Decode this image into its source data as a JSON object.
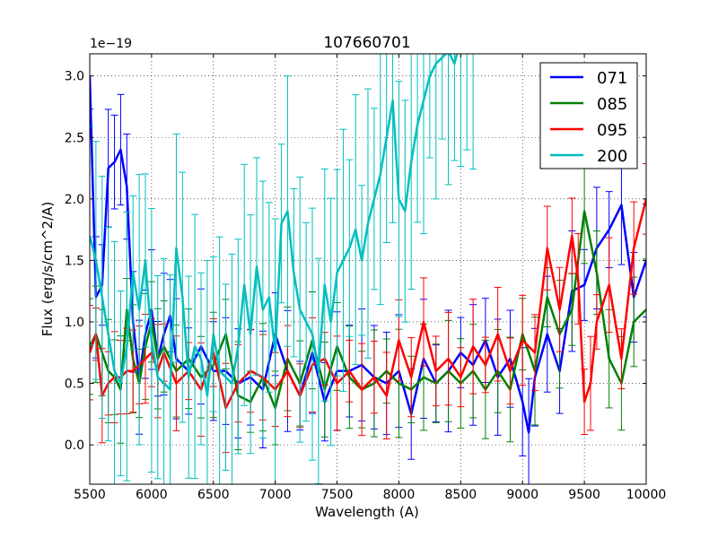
{
  "chart_data": {
    "type": "line",
    "title": "107660701",
    "xlabel": "Wavelength (A)",
    "ylabel": "Flux (erg/s/cm^2/A)",
    "offset_label": "1e−19",
    "xlim": [
      5500,
      10000
    ],
    "ylim": [
      -0.32,
      3.18
    ],
    "xticks": [
      5500,
      6000,
      6500,
      7000,
      7500,
      8000,
      8500,
      9000,
      9500,
      10000
    ],
    "xtick_labels": [
      "5500",
      "6000",
      "6500",
      "7000",
      "7500",
      "8000",
      "8500",
      "9000",
      "9500",
      "10000"
    ],
    "yticks": [
      0.0,
      0.5,
      1.0,
      1.5,
      2.0,
      2.5,
      3.0
    ],
    "ytick_labels": [
      "0.0",
      "0.5",
      "1.0",
      "1.5",
      "2.0",
      "2.5",
      "3.0"
    ],
    "grid": true,
    "legend_position": "top-right",
    "series": [
      {
        "name": "071",
        "color": "#0000ff",
        "x": [
          5500,
          5550,
          5600,
          5650,
          5700,
          5750,
          5800,
          5850,
          5900,
          5950,
          6000,
          6050,
          6100,
          6150,
          6200,
          6300,
          6400,
          6500,
          6600,
          6700,
          6800,
          6900,
          7000,
          7100,
          7200,
          7300,
          7400,
          7500,
          7600,
          7700,
          7800,
          7900,
          8000,
          8100,
          8200,
          8300,
          8400,
          8500,
          8600,
          8700,
          8800,
          8900,
          9000,
          9050,
          9100,
          9200,
          9300,
          9400,
          9500,
          9600,
          9700,
          9800,
          9900,
          10000
        ],
        "y": [
          3.0,
          1.2,
          1.3,
          2.25,
          2.3,
          2.4,
          2.1,
          1.0,
          0.55,
          0.9,
          1.1,
          0.7,
          0.9,
          1.05,
          0.7,
          0.6,
          0.8,
          0.6,
          0.6,
          0.5,
          0.55,
          0.45,
          0.9,
          0.6,
          0.4,
          0.75,
          0.35,
          0.6,
          0.6,
          0.65,
          0.55,
          0.5,
          0.6,
          0.25,
          0.7,
          0.5,
          0.6,
          0.75,
          0.65,
          0.85,
          0.55,
          0.7,
          0.35,
          0.1,
          0.55,
          0.9,
          0.6,
          1.25,
          1.3,
          1.6,
          1.75,
          1.95,
          1.2,
          1.5
        ],
        "err": 0.45
      },
      {
        "name": "085",
        "color": "#008000",
        "x": [
          5500,
          5550,
          5600,
          5650,
          5700,
          5750,
          5800,
          5850,
          5900,
          5950,
          6000,
          6050,
          6100,
          6200,
          6300,
          6400,
          6500,
          6600,
          6700,
          6800,
          6900,
          7000,
          7100,
          7200,
          7300,
          7400,
          7500,
          7600,
          7700,
          7800,
          7900,
          8000,
          8100,
          8200,
          8300,
          8400,
          8500,
          8600,
          8700,
          8800,
          8900,
          9000,
          9100,
          9200,
          9300,
          9400,
          9500,
          9600,
          9700,
          9800,
          9900,
          10000
        ],
        "y": [
          0.8,
          0.9,
          0.75,
          0.6,
          0.55,
          0.45,
          1.1,
          0.7,
          0.5,
          0.8,
          1.0,
          0.7,
          0.8,
          0.6,
          0.7,
          0.55,
          0.65,
          0.9,
          0.4,
          0.35,
          0.55,
          0.3,
          0.7,
          0.5,
          0.85,
          0.45,
          0.8,
          0.55,
          0.45,
          0.5,
          0.6,
          0.5,
          0.45,
          0.55,
          0.5,
          0.6,
          0.5,
          0.6,
          0.45,
          0.6,
          0.45,
          0.9,
          0.6,
          1.2,
          0.9,
          1.1,
          1.9,
          1.4,
          0.7,
          0.5,
          1.0,
          1.1
        ],
        "err": 0.4
      },
      {
        "name": "095",
        "color": "#ff0000",
        "x": [
          5500,
          5550,
          5600,
          5650,
          5700,
          5750,
          5800,
          5850,
          5900,
          5950,
          6000,
          6050,
          6100,
          6200,
          6300,
          6400,
          6500,
          6600,
          6700,
          6800,
          6900,
          7000,
          7100,
          7200,
          7300,
          7400,
          7500,
          7600,
          7700,
          7800,
          7900,
          8000,
          8100,
          8200,
          8300,
          8400,
          8500,
          8600,
          8700,
          8800,
          8900,
          9000,
          9100,
          9200,
          9300,
          9400,
          9450,
          9500,
          9550,
          9600,
          9700,
          9800,
          9900,
          10000
        ],
        "y": [
          0.75,
          0.9,
          0.4,
          0.5,
          0.55,
          0.55,
          0.6,
          0.6,
          0.65,
          0.7,
          0.75,
          0.6,
          0.75,
          0.5,
          0.6,
          0.45,
          0.75,
          0.3,
          0.5,
          0.6,
          0.55,
          0.45,
          0.6,
          0.4,
          0.65,
          0.7,
          0.5,
          0.6,
          0.45,
          0.55,
          0.4,
          0.85,
          0.55,
          1.0,
          0.6,
          0.7,
          0.55,
          0.8,
          0.65,
          0.9,
          0.6,
          0.85,
          0.75,
          1.6,
          1.1,
          1.7,
          1.35,
          0.35,
          0.5,
          1.0,
          1.3,
          0.7,
          1.6,
          2.0
        ],
        "err": 0.35
      },
      {
        "name": "200",
        "color": "#00bfbf",
        "x": [
          5500,
          5550,
          5600,
          5650,
          5700,
          5750,
          5800,
          5850,
          5900,
          5950,
          6000,
          6050,
          6100,
          6150,
          6200,
          6250,
          6300,
          6350,
          6400,
          6450,
          6500,
          6550,
          6600,
          6650,
          6700,
          6750,
          6800,
          6850,
          6900,
          6950,
          7000,
          7050,
          7100,
          7150,
          7200,
          7250,
          7300,
          7350,
          7400,
          7450,
          7500,
          7550,
          7600,
          7650,
          7700,
          7750,
          7800,
          7850,
          7900,
          7950,
          8000,
          8050,
          8100,
          8150,
          8200,
          8250,
          8300,
          8350,
          8400,
          8450,
          8500,
          8550,
          8600
        ],
        "y": [
          1.7,
          1.5,
          1.2,
          0.9,
          0.6,
          0.5,
          0.8,
          1.4,
          1.1,
          1.5,
          0.85,
          0.55,
          0.5,
          0.45,
          1.6,
          1.2,
          0.55,
          0.8,
          0.7,
          0.4,
          0.9,
          0.6,
          0.55,
          0.5,
          0.8,
          1.3,
          0.9,
          1.45,
          1.1,
          1.2,
          0.75,
          1.8,
          1.9,
          1.4,
          1.1,
          1.0,
          0.9,
          0.6,
          1.3,
          1.0,
          1.4,
          1.5,
          1.6,
          1.75,
          1.5,
          1.8,
          2.0,
          2.2,
          2.5,
          2.8,
          2.0,
          1.9,
          2.3,
          2.6,
          2.8,
          3.0,
          3.1,
          3.15,
          3.2,
          3.1,
          3.3,
          3.3,
          3.2
        ],
        "err": 1.0
      }
    ]
  }
}
